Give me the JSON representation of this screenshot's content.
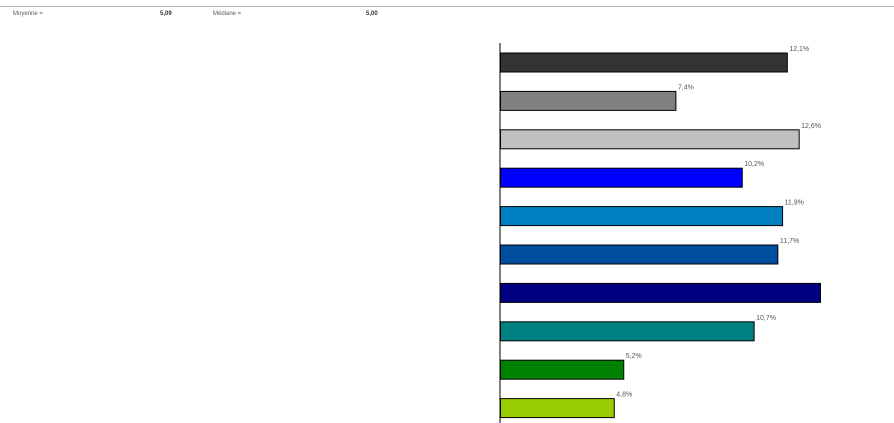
{
  "stats": {
    "mean_label": "Moyenne =",
    "mean_value": "5,09",
    "median_label": "Médiane =",
    "median_value": "5,00"
  },
  "chart_data": {
    "type": "bar",
    "orientation": "horizontal",
    "values": [
      12.1,
      7.4,
      12.6,
      10.2,
      11.9,
      11.7,
      13.5,
      10.7,
      5.2,
      4.8
    ],
    "data_labels": [
      "12,1%",
      "7,4%",
      "12,6%",
      "10,2%",
      "11,9%",
      "11,7%",
      "",
      "10,7%",
      "5,2%",
      "4,8%"
    ],
    "colors": [
      "#333333",
      "#808080",
      "#c0c0c0",
      "#0000ff",
      "#0080c0",
      "#004f9f",
      "#000080",
      "#008080",
      "#008000",
      "#99cc00"
    ],
    "xlim": [
      0,
      13.5
    ],
    "grid": false,
    "title": "",
    "xlabel": "",
    "ylabel": ""
  }
}
